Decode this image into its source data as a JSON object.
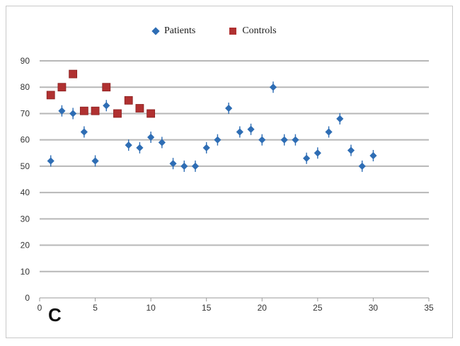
{
  "chart_data": {
    "type": "scatter",
    "xlim": [
      0,
      35
    ],
    "ylim": [
      0,
      90
    ],
    "x_ticks": [
      0,
      5,
      10,
      15,
      20,
      25,
      30,
      35
    ],
    "y_ticks": [
      0,
      10,
      20,
      30,
      40,
      50,
      60,
      70,
      80,
      90
    ],
    "x_tick_labels": [
      "0",
      "5",
      "10",
      "15",
      "20",
      "25",
      "30",
      "35"
    ],
    "y_tick_labels": [
      "0",
      "10",
      "20",
      "30",
      "40",
      "50",
      "60",
      "70",
      "80",
      "90"
    ],
    "grid": "horizontal",
    "legend_position": "top",
    "series": [
      {
        "name": "Patients",
        "marker": "diamond",
        "color": "#2e6db4",
        "x": [
          1,
          2,
          3,
          4,
          5,
          6,
          8,
          9,
          10,
          11,
          12,
          13,
          14,
          15,
          16,
          17,
          18,
          19,
          20,
          21,
          22,
          23,
          24,
          25,
          26,
          27,
          28,
          29,
          30
        ],
        "y": [
          52,
          71,
          70,
          63,
          52,
          73,
          58,
          57,
          61,
          59,
          51,
          50,
          50,
          57,
          60,
          72,
          63,
          64,
          60,
          80,
          60,
          60,
          53,
          55,
          63,
          68,
          56,
          50,
          54
        ]
      },
      {
        "name": "Controls",
        "marker": "square",
        "color": "#b03131",
        "x": [
          1,
          2,
          3,
          4,
          5,
          6,
          7,
          8,
          9,
          10
        ],
        "y": [
          77,
          80,
          85,
          71,
          71,
          80,
          70,
          75,
          72,
          70
        ]
      }
    ]
  },
  "panel_label": "C"
}
